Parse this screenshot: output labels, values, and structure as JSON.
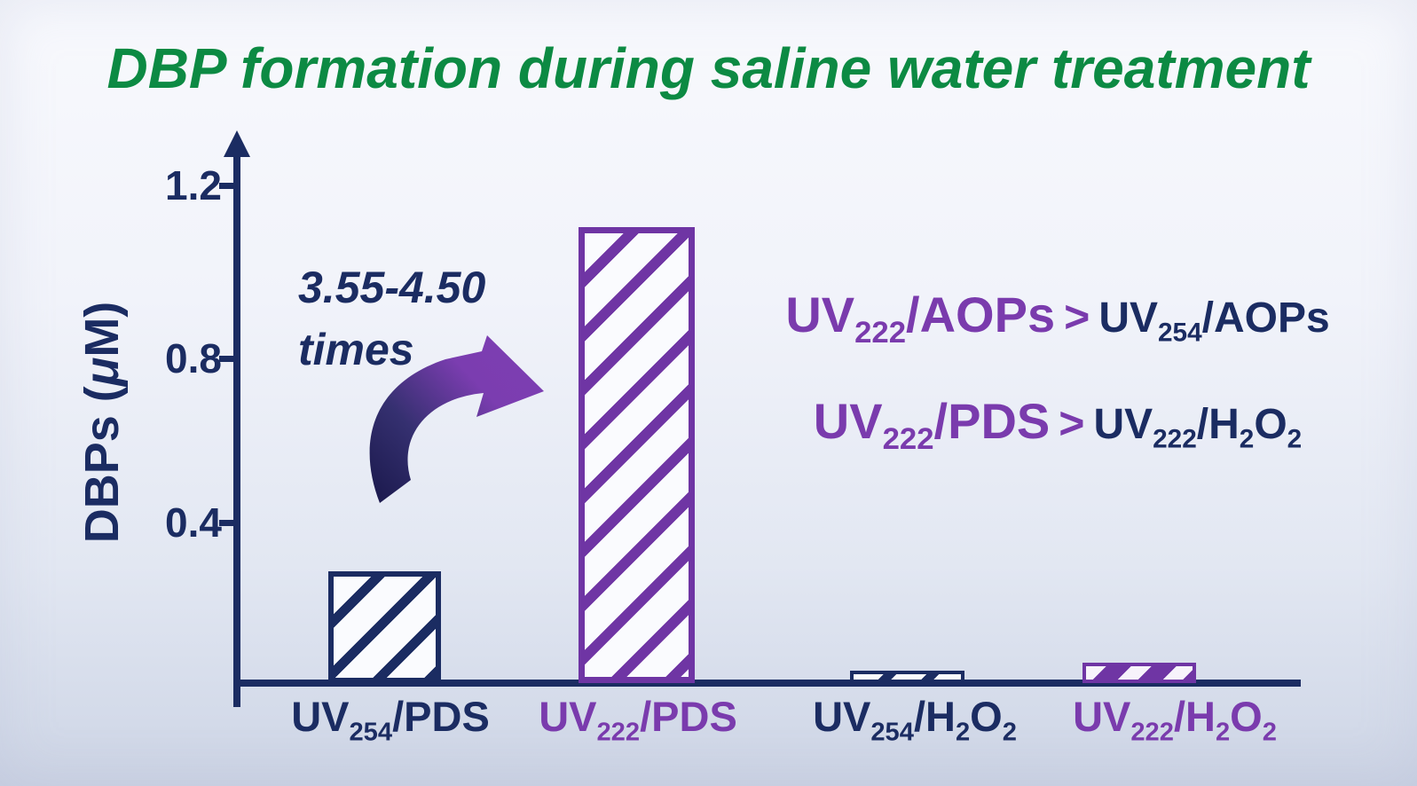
{
  "title": "DBP formation during saline water treatment",
  "colors": {
    "title_green": "#0c8a43",
    "navy": "#1b2c62",
    "purple_text": "#7a3bad",
    "purple_bar": "#6f35a4",
    "background_top": "#f8f9fd",
    "background_bottom": "#cbd2e3"
  },
  "y_axis": {
    "title_pre": "DBPs (",
    "title_mu": "μ",
    "title_post": "M)",
    "ticks": [
      "1.2",
      "0.8",
      "0.4"
    ]
  },
  "annotation": {
    "line1": "3.55-4.50",
    "line2": "times"
  },
  "x_labels": [
    {
      "color": "navy",
      "parts": [
        {
          "t": "UV"
        },
        {
          "t": "254",
          "sub": true
        },
        {
          "t": "/PDS"
        }
      ]
    },
    {
      "color": "purple",
      "parts": [
        {
          "t": "UV"
        },
        {
          "t": "222",
          "sub": true
        },
        {
          "t": "/PDS"
        }
      ]
    },
    {
      "color": "navy",
      "parts": [
        {
          "t": "UV"
        },
        {
          "t": "254",
          "sub": true
        },
        {
          "t": "/H"
        },
        {
          "t": "2",
          "sub": true
        },
        {
          "t": "O"
        },
        {
          "t": "2",
          "sub": true
        }
      ]
    },
    {
      "color": "purple",
      "parts": [
        {
          "t": "UV"
        },
        {
          "t": "222",
          "sub": true
        },
        {
          "t": "/H"
        },
        {
          "t": "2",
          "sub": true
        },
        {
          "t": "O"
        },
        {
          "t": "2",
          "sub": true
        }
      ]
    }
  ],
  "comparisons": [
    {
      "left_parts": [
        {
          "t": "UV"
        },
        {
          "t": "222",
          "sub": true
        },
        {
          "t": "/AOPs"
        }
      ],
      "op": ">",
      "right_parts": [
        {
          "t": "UV"
        },
        {
          "t": "254",
          "sub": true
        },
        {
          "t": "/AOPs"
        }
      ]
    },
    {
      "left_parts": [
        {
          "t": "UV"
        },
        {
          "t": "222",
          "sub": true
        },
        {
          "t": "/PDS"
        }
      ],
      "op": ">",
      "right_parts": [
        {
          "t": "UV"
        },
        {
          "t": "222",
          "sub": true
        },
        {
          "t": "/H"
        },
        {
          "t": "2",
          "sub": true
        },
        {
          "t": "O"
        },
        {
          "t": "2",
          "sub": true
        }
      ]
    }
  ],
  "chart_data": {
    "type": "bar",
    "categories": [
      "UV254/PDS",
      "UV222/PDS",
      "UV254/H2O2",
      "UV222/H2O2"
    ],
    "values": [
      0.27,
      1.1,
      0.03,
      0.05
    ],
    "title": "DBP formation during saline water treatment",
    "xlabel": "",
    "ylabel": "DBPs (μM)",
    "ylim": [
      0,
      1.3
    ],
    "yticks": [
      0.4,
      0.8,
      1.2
    ],
    "grid": false,
    "legend": "none",
    "bar_styles": [
      "navy-hatched",
      "purple-hatched",
      "navy-hatched",
      "purple-solid-hatched"
    ],
    "annotation": "3.55-4.50 times increase from UV254/PDS to UV222/PDS",
    "comparisons": [
      "UV222/AOPs > UV254/AOPs",
      "UV222/PDS > UV222/H2O2"
    ]
  }
}
